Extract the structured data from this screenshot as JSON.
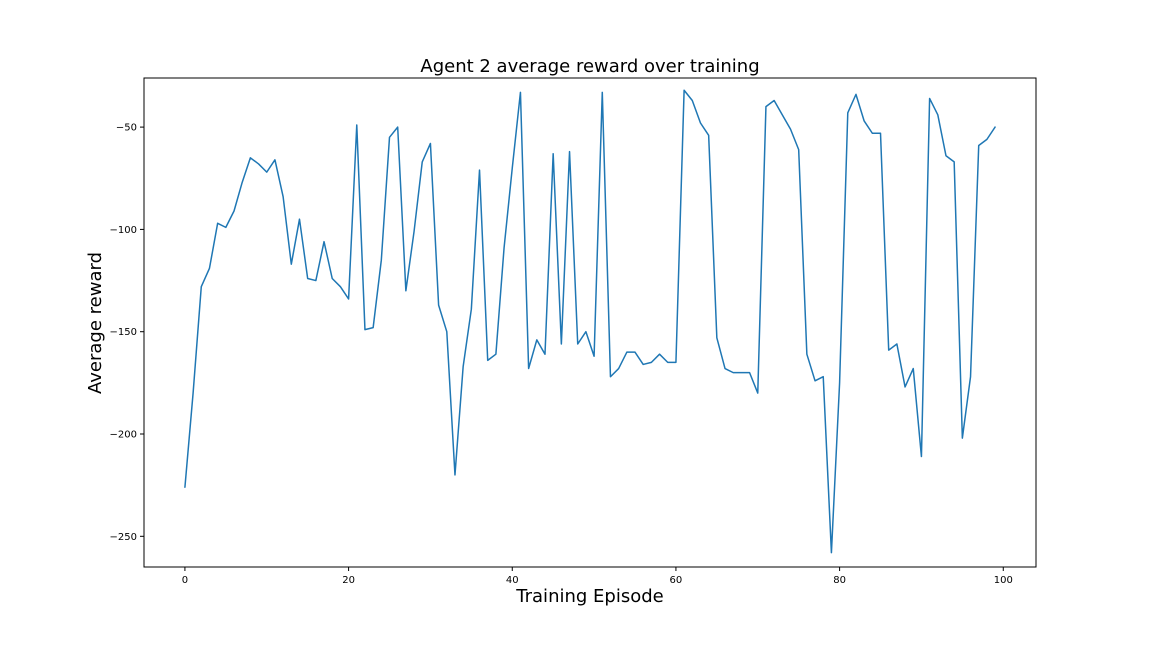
{
  "chart_data": {
    "type": "line",
    "title": "Agent 2 average reward over training",
    "xlabel": "Training Episode",
    "ylabel": "Average reward",
    "xlim": [
      -5,
      104
    ],
    "ylim": [
      -265,
      -26
    ],
    "xticks": [
      0,
      20,
      40,
      60,
      80,
      100
    ],
    "yticks": [
      -250,
      -200,
      -150,
      -100,
      -50
    ],
    "xtick_labels": [
      "0",
      "20",
      "40",
      "60",
      "80",
      "100"
    ],
    "ytick_labels": [
      "−250",
      "−200",
      "−150",
      "−100",
      "−50"
    ],
    "grid": false,
    "legend": "none",
    "series": [
      {
        "color": "#1f77b4",
        "x": [
          0,
          1,
          2,
          3,
          4,
          5,
          6,
          7,
          8,
          9,
          10,
          11,
          12,
          13,
          14,
          15,
          16,
          17,
          18,
          19,
          20,
          21,
          22,
          23,
          24,
          25,
          26,
          27,
          28,
          29,
          30,
          31,
          32,
          33,
          34,
          35,
          36,
          37,
          38,
          39,
          40,
          41,
          42,
          43,
          44,
          45,
          46,
          47,
          48,
          49,
          50,
          51,
          52,
          53,
          54,
          55,
          56,
          57,
          58,
          59,
          60,
          61,
          62,
          63,
          64,
          65,
          66,
          67,
          68,
          69,
          70,
          71,
          72,
          73,
          74,
          75,
          76,
          77,
          78,
          79,
          80,
          81,
          82,
          83,
          84,
          85,
          86,
          87,
          88,
          89,
          90,
          91,
          92,
          93,
          94,
          95,
          96,
          97,
          98,
          99
        ],
        "y": [
          -226,
          -180,
          -128,
          -119,
          -97,
          -99,
          -91,
          -77,
          -65,
          -68,
          -72,
          -66,
          -84,
          -117,
          -95,
          -124,
          -125,
          -106,
          -124,
          -128,
          -134,
          -49,
          -149,
          -148,
          -115,
          -55,
          -50,
          -130,
          -101,
          -67,
          -58,
          -137,
          -150,
          -220,
          -167,
          -139,
          -71,
          -164,
          -161,
          -109,
          -70,
          -33,
          -168,
          -154,
          -161,
          -63,
          -156,
          -62,
          -156,
          -150,
          -162,
          -33,
          -172,
          -168,
          -160,
          -160,
          -166,
          -165,
          -161,
          -165,
          -165,
          -32,
          -37,
          -48,
          -54,
          -153,
          -168,
          -170,
          -170,
          -170,
          -180,
          -40,
          -37,
          -44,
          -51,
          -61,
          -161,
          -174,
          -172,
          -258,
          -175,
          -43,
          -34,
          -47,
          -53,
          -53,
          -159,
          -156,
          -177,
          -168,
          -211,
          -36,
          -44,
          -64,
          -67,
          -202,
          -172,
          -59,
          -56,
          -50
        ]
      }
    ]
  }
}
